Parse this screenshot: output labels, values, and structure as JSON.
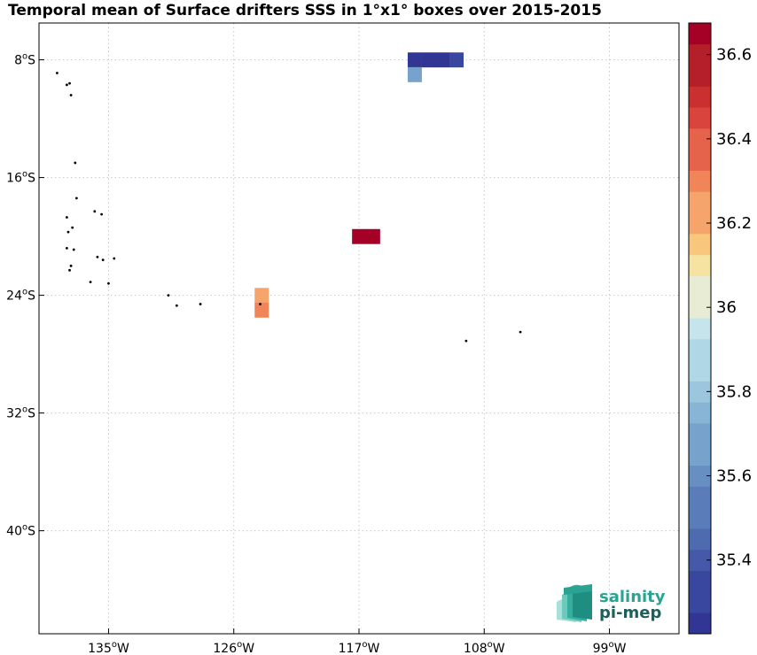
{
  "chart_data": {
    "type": "heatmap",
    "title": "Temporal mean of Surface drifters SSS in 1°x1° boxes over 2015-2015",
    "x_axis": {
      "range": [
        -140,
        -94
      ],
      "ticks": [
        {
          "value": -135,
          "deg": "135",
          "hemi": "W"
        },
        {
          "value": -126,
          "deg": "126",
          "hemi": "W"
        },
        {
          "value": -117,
          "deg": "117",
          "hemi": "W"
        },
        {
          "value": -108,
          "deg": "108",
          "hemi": "W"
        },
        {
          "value": -99,
          "deg": "99",
          "hemi": "W"
        }
      ]
    },
    "y_axis": {
      "range": [
        -47,
        -5.5
      ],
      "ticks": [
        {
          "value": -8,
          "deg": "8",
          "hemi": "S"
        },
        {
          "value": -16,
          "deg": "16",
          "hemi": "S"
        },
        {
          "value": -24,
          "deg": "24",
          "hemi": "S"
        },
        {
          "value": -32,
          "deg": "32",
          "hemi": "S"
        },
        {
          "value": -40,
          "deg": "40",
          "hemi": "S"
        }
      ]
    },
    "grid": true,
    "colorbar": {
      "range": [
        35.225,
        36.675
      ],
      "levels": 29,
      "colors": [
        "#313695",
        "#3a479e",
        "#4459a7",
        "#4e6bb0",
        "#5a7db9",
        "#678fc2",
        "#77a2cc",
        "#88b4d5",
        "#9bc6de",
        "#afd7e6",
        "#c6e4ec",
        "#e8ecd4",
        "#f6e2a1",
        "#f8c77d",
        "#f5a56b",
        "#ef8559",
        "#e5634a",
        "#d9453c",
        "#c9302f",
        "#b41f2a",
        "#a50026"
      ],
      "ticks": [
        {
          "value": 36.6,
          "label": "36.6"
        },
        {
          "value": 36.4,
          "label": "36.4"
        },
        {
          "value": 36.2,
          "label": "36.2"
        },
        {
          "value": 36.0,
          "label": "36"
        },
        {
          "value": 35.8,
          "label": "35.8"
        },
        {
          "value": 35.6,
          "label": "35.6"
        },
        {
          "value": 35.4,
          "label": "35.4"
        }
      ]
    },
    "cells": [
      {
        "lon": -113,
        "lat": -8,
        "value": 35.27
      },
      {
        "lon": -112,
        "lat": -8,
        "value": 35.26
      },
      {
        "lon": -111,
        "lat": -8,
        "value": 35.26
      },
      {
        "lon": -110,
        "lat": -8,
        "value": 35.3
      },
      {
        "lon": -113,
        "lat": -9,
        "value": 35.68
      },
      {
        "lon": -117,
        "lat": -20,
        "value": 36.65
      },
      {
        "lon": -116,
        "lat": -20,
        "value": 36.65
      },
      {
        "lon": -124,
        "lat": -24,
        "value": 36.23
      },
      {
        "lon": -124,
        "lat": -25,
        "value": 36.29
      }
    ],
    "islands": [
      {
        "lon": -138.7,
        "lat": -8.9
      },
      {
        "lon": -138.0,
        "lat": -9.7
      },
      {
        "lon": -137.8,
        "lat": -9.6
      },
      {
        "lon": -137.7,
        "lat": -10.4
      },
      {
        "lon": -137.4,
        "lat": -15.0
      },
      {
        "lon": -137.3,
        "lat": -17.4
      },
      {
        "lon": -136.0,
        "lat": -18.3
      },
      {
        "lon": -135.5,
        "lat": -18.5
      },
      {
        "lon": -138.0,
        "lat": -18.7
      },
      {
        "lon": -137.6,
        "lat": -19.4
      },
      {
        "lon": -137.9,
        "lat": -19.7
      },
      {
        "lon": -138.0,
        "lat": -20.8
      },
      {
        "lon": -137.5,
        "lat": -20.9
      },
      {
        "lon": -135.8,
        "lat": -21.4
      },
      {
        "lon": -135.4,
        "lat": -21.6
      },
      {
        "lon": -134.6,
        "lat": -21.5
      },
      {
        "lon": -137.7,
        "lat": -22.0
      },
      {
        "lon": -137.8,
        "lat": -22.3
      },
      {
        "lon": -136.3,
        "lat": -23.1
      },
      {
        "lon": -135.0,
        "lat": -23.2
      },
      {
        "lon": -130.7,
        "lat": -24.0
      },
      {
        "lon": -128.4,
        "lat": -24.6
      },
      {
        "lon": -130.1,
        "lat": -24.7
      },
      {
        "lon": -124.1,
        "lat": -24.6
      },
      {
        "lon": -109.3,
        "lat": -27.1
      },
      {
        "lon": -105.4,
        "lat": -26.5
      }
    ]
  },
  "logo": {
    "line1": "salinity",
    "line2": "pi-mep"
  }
}
